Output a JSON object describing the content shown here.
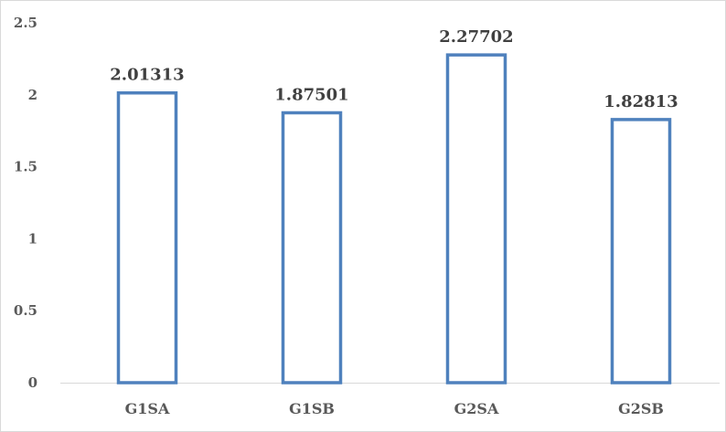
{
  "chart_data": {
    "type": "bar",
    "categories": [
      "G1SA",
      "G1SB",
      "G2SA",
      "G2SB"
    ],
    "values": [
      2.01313,
      1.87501,
      2.27702,
      1.82813
    ],
    "data_labels": [
      "2.01313",
      "1.87501",
      "2.27702",
      "1.82813"
    ],
    "ylim": [
      0,
      2.5
    ],
    "yticks": [
      0,
      0.5,
      1,
      1.5,
      2,
      2.5
    ],
    "ytick_labels": [
      "0",
      "0.5",
      "1",
      "1.5",
      "2",
      "2.5"
    ],
    "grid": false,
    "bar_style": "outline",
    "bar_color": "#4f81bd",
    "title": "",
    "xlabel": "",
    "ylabel": ""
  }
}
